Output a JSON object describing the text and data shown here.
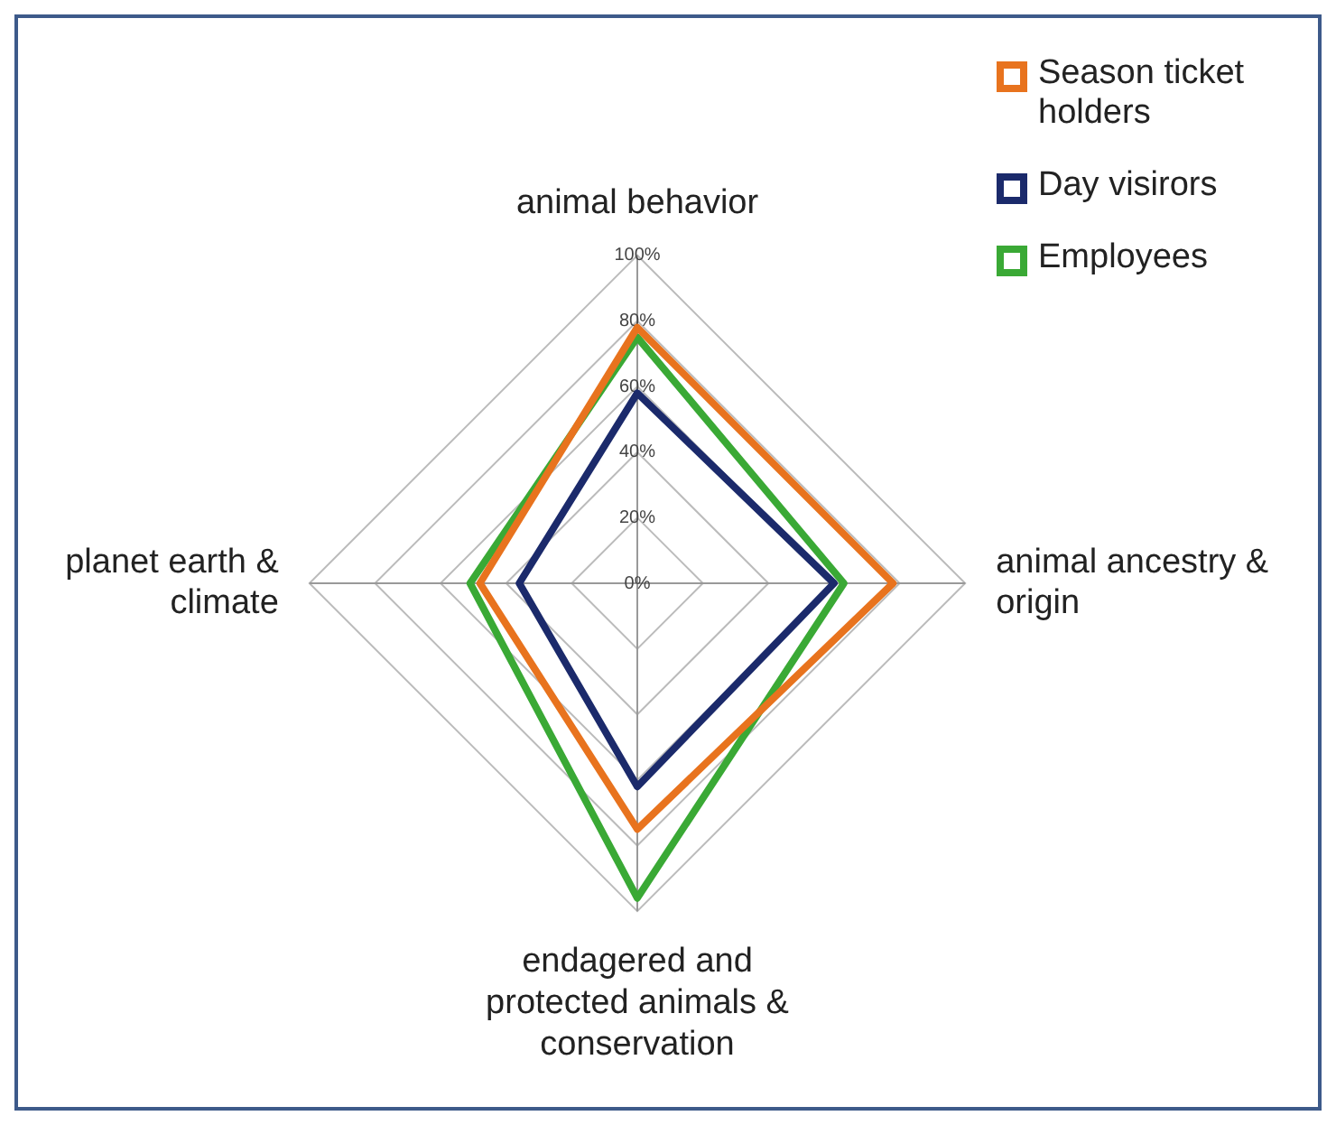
{
  "chart_data": {
    "type": "radar",
    "categories": [
      "animal behavior",
      "animal ancestry & origin",
      "endagered and protected animals & conservation",
      "planet earth & climate"
    ],
    "series": [
      {
        "name": "Season ticket holders",
        "color": "#e8731e",
        "values": [
          78,
          78,
          75,
          48
        ]
      },
      {
        "name": "Day visirors",
        "color": "#1b2a6b",
        "values": [
          58,
          60,
          62,
          36
        ]
      },
      {
        "name": "Employees",
        "color": "#3aa935",
        "values": [
          75,
          63,
          96,
          51
        ]
      }
    ],
    "ylim": [
      0,
      100
    ],
    "yticks": [
      {
        "value": 0,
        "label": "0%"
      },
      {
        "value": 20,
        "label": "20%"
      },
      {
        "value": 40,
        "label": "40%"
      },
      {
        "value": 60,
        "label": "60%"
      },
      {
        "value": 80,
        "label": "80%"
      },
      {
        "value": 100,
        "label": "100%"
      }
    ],
    "grid": true,
    "legend": "top right",
    "marker": "none"
  }
}
